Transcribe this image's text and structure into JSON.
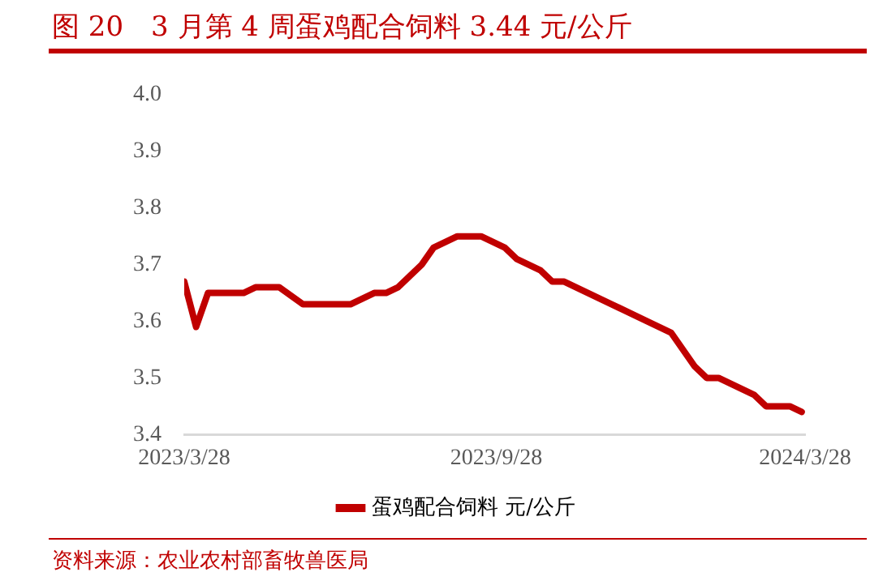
{
  "chart_data": {
    "type": "line",
    "title": "图 20　3 月第 4 周蛋鸡配合饲料 3.44 元/公斤",
    "x": [
      "2023-03-28",
      "2023-04-04",
      "2023-04-11",
      "2023-05-02",
      "2023-05-09",
      "2023-05-23",
      "2023-06-06",
      "2023-07-04",
      "2023-07-18",
      "2023-07-25",
      "2023-08-01",
      "2023-08-08",
      "2023-08-15",
      "2023-08-22",
      "2023-09-05",
      "2023-09-19",
      "2023-10-03",
      "2023-10-10",
      "2023-10-24",
      "2023-10-31",
      "2023-11-07",
      "2023-11-28",
      "2023-12-05",
      "2023-12-26",
      "2024-01-02",
      "2024-01-09",
      "2024-01-23",
      "2024-01-30",
      "2024-02-06",
      "2024-02-13",
      "2024-02-20",
      "2024-02-27",
      "2024-03-05",
      "2024-03-19",
      "2024-03-26"
    ],
    "series": [
      {
        "name": "蛋鸡配合饲料 元/公斤",
        "color": "#c00000",
        "values": [
          3.67,
          3.59,
          3.65,
          3.65,
          3.66,
          3.66,
          3.63,
          3.63,
          3.65,
          3.65,
          3.66,
          3.68,
          3.7,
          3.73,
          3.75,
          3.75,
          3.73,
          3.71,
          3.69,
          3.67,
          3.67,
          3.64,
          3.63,
          3.6,
          3.59,
          3.58,
          3.52,
          3.5,
          3.5,
          3.49,
          3.48,
          3.47,
          3.45,
          3.45,
          3.44
        ]
      }
    ],
    "xlim": [
      "2023-03-28",
      "2024-03-28"
    ],
    "xticks": [
      {
        "value": "2023-03-28",
        "label": "2023/3/28"
      },
      {
        "value": "2023-09-28",
        "label": "2023/9/28"
      },
      {
        "value": "2024-03-28",
        "label": "2024/3/28"
      }
    ],
    "ylim": [
      3.4,
      4.0
    ],
    "yticks": [
      {
        "value": 3.4,
        "label": "3.4"
      },
      {
        "value": 3.5,
        "label": "3.5"
      },
      {
        "value": 3.6,
        "label": "3.6"
      },
      {
        "value": 3.7,
        "label": "3.7"
      },
      {
        "value": 3.8,
        "label": "3.8"
      },
      {
        "value": 3.9,
        "label": "3.9"
      },
      {
        "value": 4.0,
        "label": "4.0"
      }
    ],
    "grid": false,
    "legend": "bottom",
    "marker": "none",
    "line_style": "solid",
    "annotations": [
      "资料来源：农业农村部畜牧兽医局"
    ]
  }
}
